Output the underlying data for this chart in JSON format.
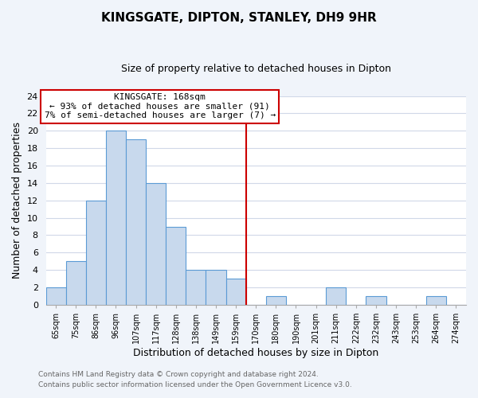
{
  "title": "KINGSGATE, DIPTON, STANLEY, DH9 9HR",
  "subtitle": "Size of property relative to detached houses in Dipton",
  "xlabel": "Distribution of detached houses by size in Dipton",
  "ylabel": "Number of detached properties",
  "bin_labels": [
    "65sqm",
    "75sqm",
    "86sqm",
    "96sqm",
    "107sqm",
    "117sqm",
    "128sqm",
    "138sqm",
    "149sqm",
    "159sqm",
    "170sqm",
    "180sqm",
    "190sqm",
    "201sqm",
    "211sqm",
    "222sqm",
    "232sqm",
    "243sqm",
    "253sqm",
    "264sqm",
    "274sqm"
  ],
  "bar_values": [
    2,
    5,
    12,
    20,
    19,
    14,
    9,
    4,
    4,
    3,
    0,
    1,
    0,
    0,
    2,
    0,
    1,
    0,
    0,
    1,
    0
  ],
  "bar_color": "#c8d9ed",
  "bar_edge_color": "#5b9bd5",
  "vline_x_index": 10,
  "vline_color": "#cc0000",
  "annotation_title": "KINGSGATE: 168sqm",
  "annotation_line1": "← 93% of detached houses are smaller (91)",
  "annotation_line2": "7% of semi-detached houses are larger (7) →",
  "annotation_box_color": "#ffffff",
  "annotation_box_edge": "#cc0000",
  "ylim": [
    0,
    24
  ],
  "yticks": [
    0,
    2,
    4,
    6,
    8,
    10,
    12,
    14,
    16,
    18,
    20,
    22,
    24
  ],
  "footer_line1": "Contains HM Land Registry data © Crown copyright and database right 2024.",
  "footer_line2": "Contains public sector information licensed under the Open Government Licence v3.0.",
  "fig_background_color": "#f0f4fa",
  "plot_background_color": "#ffffff",
  "grid_color": "#d0d8e8"
}
